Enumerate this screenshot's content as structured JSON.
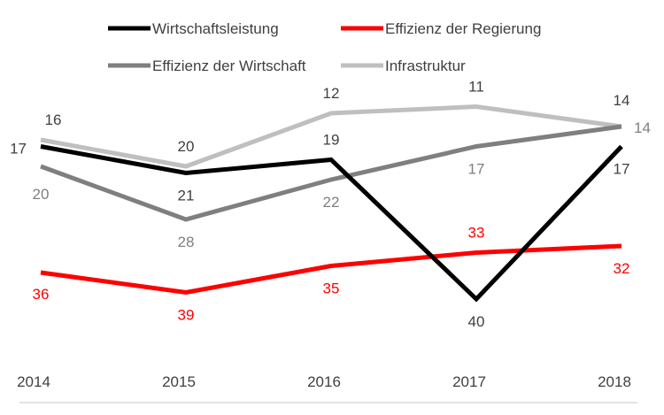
{
  "chart_data": {
    "type": "line",
    "title": "",
    "xlabel": "",
    "ylabel": "",
    "y_axis_inverted": true,
    "ylim": [
      10,
      41
    ],
    "grid": false,
    "legend_position": "top",
    "categories": [
      "2014",
      "2015",
      "2016",
      "2017",
      "2018"
    ],
    "series": [
      {
        "name": "Wirtschaftsleistung",
        "color": "#000000",
        "label_color": "#404040",
        "values": [
          17,
          21,
          19,
          40,
          17
        ],
        "label_positions": [
          "left",
          "below",
          "above",
          "below",
          "below"
        ]
      },
      {
        "name": "Effizienz der Regierung",
        "color": "#ff0000",
        "label_color": "#ff0000",
        "values": [
          36,
          39,
          35,
          33,
          32
        ],
        "label_positions": [
          "below",
          "below",
          "below",
          "above",
          "below"
        ]
      },
      {
        "name": "Effizienz der Wirtschaft",
        "color": "#7f7f7f",
        "label_color": "#7f7f7f",
        "values": [
          20,
          28,
          22,
          17,
          14
        ],
        "label_positions": [
          "below",
          "below",
          "below",
          "below",
          "right"
        ]
      },
      {
        "name": "Infrastruktur",
        "color": "#bfbfbf",
        "label_color": "#404040",
        "values": [
          16,
          20,
          12,
          11,
          14
        ],
        "label_positions": [
          "above",
          "above",
          "above",
          "above",
          "above"
        ]
      }
    ]
  }
}
